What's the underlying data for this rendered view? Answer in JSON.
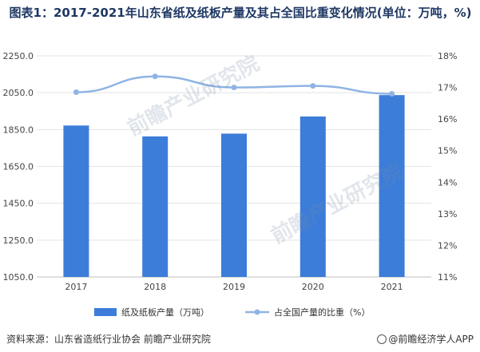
{
  "title": "图表1：2017-2021年山东省纸及纸板产量及其占全国比重变化情况(单位：万吨，%)",
  "source": "资料来源：山东省造纸行业协会 前瞻产业研究院",
  "brand": "@前瞻经济学人APP",
  "watermark": "前瞻产业研究院",
  "colors": {
    "bar": "#3c7dd9",
    "line": "#8fb4e3",
    "grid": "#e3e3e3",
    "title": "#1f3864"
  },
  "chart_data": {
    "type": "bar",
    "categories": [
      "2017",
      "2018",
      "2019",
      "2020",
      "2021"
    ],
    "series": [
      {
        "name": "纸及纸板产量（万吨）",
        "type": "bar",
        "axis": "left",
        "values": [
          1872,
          1813,
          1828,
          1921,
          2037
        ]
      },
      {
        "name": "占全国产量的比重（%）",
        "type": "line",
        "axis": "right",
        "values": [
          16.85,
          17.35,
          17.0,
          17.05,
          16.8
        ]
      }
    ],
    "y_left": {
      "ylim": [
        1050,
        2250
      ],
      "ticks": [
        "1050.0",
        "1250.0",
        "1450.0",
        "1650.0",
        "1850.0",
        "2050.0",
        "2250.0"
      ]
    },
    "y_right": {
      "ylim": [
        11,
        18
      ],
      "ticks": [
        "11%",
        "12%",
        "13%",
        "14%",
        "15%",
        "16%",
        "17%",
        "18%"
      ]
    },
    "grid": true,
    "legend": "bottom"
  }
}
